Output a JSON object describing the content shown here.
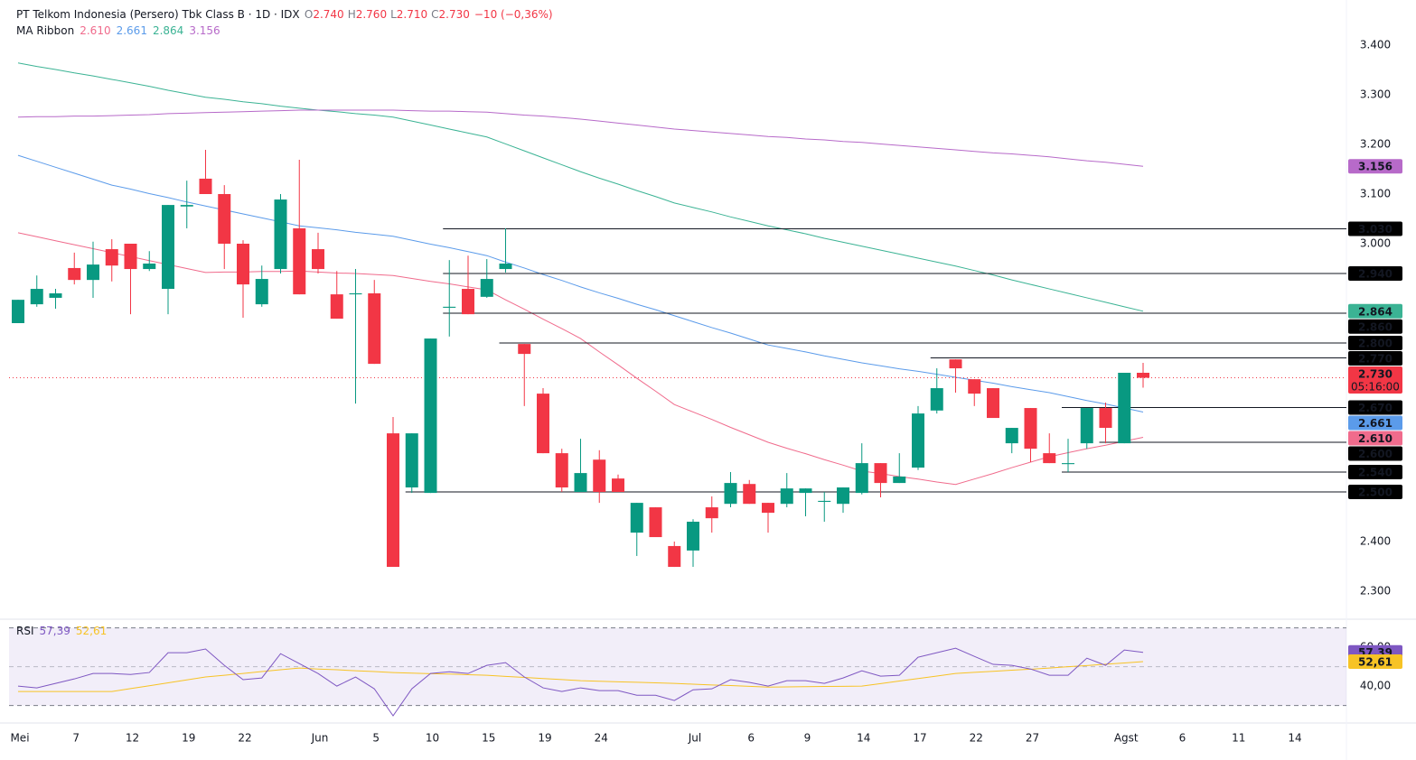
{
  "chart_data": [
    {
      "type": "candlestick",
      "title": "PT Telkom Indonesia (Persero) Tbk Class B · 1D · IDX",
      "ohlc": [
        {
          "key": "O",
          "label": "2.740"
        },
        {
          "key": "H",
          "label": "2.760"
        },
        {
          "key": "L",
          "label": "2.710"
        },
        {
          "key": "C",
          "label": "2.730"
        }
      ],
      "change": "−10 (−0,36%)",
      "indicator": "MA Ribbon",
      "up_color": "#089981",
      "down_color": "#f23645",
      "categories": [
        "Mei",
        null,
        null,
        "7",
        null,
        null,
        "12",
        null,
        null,
        "19",
        null,
        null,
        "22",
        null,
        null,
        null,
        "Jun",
        null,
        null,
        "5",
        null,
        null,
        "10",
        null,
        null,
        "15",
        null,
        null,
        "19",
        null,
        null,
        "24",
        null,
        null,
        null,
        null,
        "Jul",
        null,
        null,
        "6",
        null,
        null,
        "9",
        null,
        null,
        "14",
        null,
        null,
        "17",
        null,
        null,
        "22",
        null,
        null,
        "27",
        null,
        null,
        null,
        null,
        "Agst",
        null,
        null,
        "6",
        null,
        null,
        "11",
        null,
        null,
        "14"
      ],
      "open": [
        2.84,
        2.878,
        2.891,
        2.951,
        2.927,
        2.989,
        3.0,
        2.949,
        2.909,
        3.075,
        3.131,
        3.1,
        3.0,
        2.878,
        2.949,
        3.031,
        2.989,
        2.898,
        2.898,
        2.9,
        2.618,
        2.509,
        2.498,
        2.871,
        2.909,
        2.893,
        2.949,
        2.798,
        2.698,
        2.578,
        2.5,
        2.565,
        2.527,
        2.418,
        2.469,
        2.391,
        2.382,
        2.469,
        2.476,
        2.516,
        2.478,
        2.476,
        2.498,
        2.48,
        2.476,
        2.498,
        2.558,
        2.518,
        2.549,
        2.664,
        2.767,
        2.727,
        2.709,
        2.598,
        2.669,
        2.578,
        2.556,
        2.598,
        2.669,
        2.598,
        2.74,
        null,
        null,
        null,
        null,
        null,
        null,
        null,
        null
      ],
      "high": [
        2.887,
        2.936,
        2.909,
        2.982,
        3.004,
        3.009,
        3.0,
        2.985,
        3.078,
        3.127,
        3.189,
        3.118,
        3.007,
        2.956,
        3.1,
        3.169,
        3.022,
        2.945,
        2.949,
        2.927,
        2.651,
        2.618,
        2.809,
        2.967,
        2.976,
        2.969,
        3.031,
        2.798,
        2.709,
        2.587,
        2.607,
        2.584,
        2.535,
        2.478,
        2.469,
        2.4,
        2.445,
        2.491,
        2.54,
        2.524,
        2.478,
        2.538,
        2.507,
        2.5,
        2.509,
        2.598,
        2.558,
        2.578,
        2.673,
        2.749,
        2.767,
        2.727,
        2.709,
        2.629,
        2.669,
        2.618,
        2.607,
        2.669,
        2.68,
        2.74,
        2.76,
        null,
        null,
        null,
        null,
        null,
        null,
        null,
        null
      ],
      "low": [
        2.84,
        2.873,
        2.869,
        2.918,
        2.891,
        2.924,
        2.858,
        2.945,
        2.858,
        3.031,
        3.1,
        2.949,
        2.851,
        2.873,
        2.94,
        2.898,
        2.94,
        2.849,
        2.678,
        2.758,
        2.349,
        2.498,
        2.498,
        2.813,
        2.858,
        2.891,
        2.942,
        2.673,
        2.578,
        2.5,
        2.5,
        2.478,
        2.5,
        2.371,
        2.409,
        2.349,
        2.349,
        2.418,
        2.469,
        2.476,
        2.418,
        2.469,
        2.451,
        2.44,
        2.458,
        2.495,
        2.489,
        2.518,
        2.544,
        2.658,
        2.7,
        2.673,
        2.649,
        2.578,
        2.56,
        2.558,
        2.54,
        2.587,
        2.598,
        2.598,
        2.71,
        null,
        null,
        null,
        null,
        null,
        null,
        null,
        null
      ],
      "close": [
        2.887,
        2.909,
        2.9,
        2.927,
        2.958,
        2.956,
        2.949,
        2.96,
        3.078,
        3.078,
        3.1,
        3.0,
        2.918,
        2.929,
        3.089,
        2.898,
        2.949,
        2.849,
        2.9,
        2.758,
        2.349,
        2.618,
        2.809,
        2.873,
        2.858,
        2.929,
        2.96,
        2.778,
        2.578,
        2.509,
        2.538,
        2.5,
        2.5,
        2.478,
        2.409,
        2.349,
        2.44,
        2.447,
        2.518,
        2.476,
        2.458,
        2.507,
        2.507,
        2.482,
        2.509,
        2.558,
        2.518,
        2.531,
        2.658,
        2.709,
        2.749,
        2.698,
        2.649,
        2.629,
        2.587,
        2.558,
        2.558,
        2.669,
        2.629,
        2.74,
        2.73,
        null,
        null,
        null,
        null,
        null,
        null,
        null,
        null
      ],
      "series": [
        {
          "color": "#f06b8c",
          "legend_value": "2.610",
          "values": [
            3.022,
            3.014,
            3.006,
            2.998,
            2.99,
            2.982,
            2.974,
            2.966,
            2.958,
            2.95,
            2.942,
            2.943,
            2.943,
            2.944,
            2.944,
            2.945,
            2.943,
            2.941,
            2.94,
            2.938,
            2.936,
            2.93,
            2.924,
            2.919,
            2.913,
            2.907,
            2.887,
            2.868,
            2.848,
            2.829,
            2.809,
            2.782,
            2.756,
            2.729,
            2.703,
            2.676,
            2.661,
            2.646,
            2.63,
            2.615,
            2.6,
            2.588,
            2.577,
            2.565,
            2.554,
            2.542,
            2.537,
            2.531,
            2.526,
            2.52,
            2.515,
            2.526,
            2.537,
            2.549,
            2.56,
            2.571,
            2.579,
            2.587,
            2.594,
            2.602,
            2.61,
            null,
            null,
            null,
            null,
            null,
            null,
            null,
            null
          ]
        },
        {
          "color": "#5b9bea",
          "legend_value": "2.661",
          "values": [
            3.178,
            3.166,
            3.154,
            3.142,
            3.13,
            3.118,
            3.11,
            3.101,
            3.093,
            3.084,
            3.076,
            3.068,
            3.06,
            3.052,
            3.044,
            3.036,
            3.032,
            3.028,
            3.023,
            3.019,
            3.015,
            3.007,
            2.999,
            2.992,
            2.984,
            2.976,
            2.963,
            2.951,
            2.938,
            2.926,
            2.913,
            2.901,
            2.89,
            2.878,
            2.867,
            2.855,
            2.843,
            2.831,
            2.82,
            2.808,
            2.796,
            2.789,
            2.782,
            2.774,
            2.767,
            2.76,
            2.754,
            2.748,
            2.743,
            2.737,
            2.731,
            2.725,
            2.719,
            2.712,
            2.706,
            2.7,
            2.692,
            2.684,
            2.677,
            2.669,
            2.661,
            null,
            null,
            null,
            null,
            null,
            null,
            null,
            null
          ]
        },
        {
          "color": "#3bb394",
          "legend_value": "2.864",
          "values": [
            3.364,
            3.357,
            3.351,
            3.344,
            3.338,
            3.331,
            3.324,
            3.317,
            3.309,
            3.302,
            3.295,
            3.291,
            3.286,
            3.282,
            3.277,
            3.273,
            3.269,
            3.266,
            3.262,
            3.259,
            3.255,
            3.247,
            3.239,
            3.231,
            3.223,
            3.215,
            3.201,
            3.187,
            3.173,
            3.159,
            3.145,
            3.132,
            3.12,
            3.107,
            3.095,
            3.082,
            3.073,
            3.064,
            3.054,
            3.045,
            3.036,
            3.028,
            3.02,
            3.011,
            3.003,
            2.995,
            2.987,
            2.979,
            2.971,
            2.963,
            2.955,
            2.946,
            2.937,
            2.927,
            2.918,
            2.909,
            2.9,
            2.891,
            2.882,
            2.873,
            2.864,
            null,
            null,
            null,
            null,
            null,
            null,
            null,
            null
          ]
        },
        {
          "color": "#b76ac9",
          "legend_value": "3.156",
          "values": [
            3.255,
            3.256,
            3.256,
            3.257,
            3.257,
            3.258,
            3.259,
            3.26,
            3.262,
            3.263,
            3.264,
            3.265,
            3.266,
            3.267,
            3.268,
            3.269,
            3.269,
            3.269,
            3.269,
            3.269,
            3.269,
            3.268,
            3.267,
            3.267,
            3.266,
            3.265,
            3.262,
            3.259,
            3.257,
            3.254,
            3.251,
            3.247,
            3.243,
            3.239,
            3.235,
            3.231,
            3.228,
            3.225,
            3.222,
            3.219,
            3.216,
            3.214,
            3.211,
            3.209,
            3.206,
            3.204,
            3.201,
            3.198,
            3.195,
            3.192,
            3.189,
            3.186,
            3.183,
            3.181,
            3.178,
            3.175,
            3.171,
            3.167,
            3.164,
            3.16,
            3.156,
            null,
            null,
            null,
            null,
            null,
            null,
            null,
            null
          ]
        }
      ],
      "levels": [
        {
          "value": 3.03,
          "label": "3.030",
          "start": 23
        },
        {
          "value": 2.94,
          "label": "2.940",
          "start": 23
        },
        {
          "value": 2.86,
          "label": "2.860",
          "start": 23
        },
        {
          "value": 2.8,
          "label": "2.800",
          "start": 26
        },
        {
          "value": 2.77,
          "label": "2.770",
          "start": 49
        },
        {
          "value": 2.67,
          "label": "2.670",
          "start": 56
        },
        {
          "value": 2.6,
          "label": "2.600",
          "start": 58
        },
        {
          "value": 2.54,
          "label": "2.540",
          "start": 56
        },
        {
          "value": 2.5,
          "label": "2.500",
          "start": 21
        }
      ],
      "last_price": {
        "value": 2.73,
        "label": "2.730",
        "countdown": "05:16:00"
      },
      "ylim": [
        2.245,
        3.49
      ],
      "yticks": [
        {
          "value": 3.4,
          "label": "3.400"
        },
        {
          "value": 3.3,
          "label": "3.300"
        },
        {
          "value": 3.2,
          "label": "3.200"
        },
        {
          "value": 3.1,
          "label": "3.100"
        },
        {
          "value": 3.0,
          "label": "3.000"
        },
        {
          "value": 2.4,
          "label": "2.400"
        },
        {
          "value": 2.3,
          "label": "2.300"
        }
      ]
    },
    {
      "type": "line",
      "title": "RSI",
      "band_color": "#7e57c2",
      "bands": [
        70,
        30
      ],
      "midline": 50,
      "series": [
        {
          "color": "#7e57c2",
          "label_color": "#7e57c2",
          "legend_value": "57,39",
          "values": [
            40.0,
            39.1,
            41.4,
            43.7,
            46.5,
            46.5,
            46.0,
            47.0,
            57.2,
            57.2,
            59.1,
            50.7,
            43.3,
            44.2,
            56.7,
            51.6,
            46.5,
            40.0,
            44.7,
            38.6,
            24.7,
            38.6,
            46.5,
            47.4,
            46.5,
            50.7,
            52.1,
            44.7,
            39.1,
            37.2,
            39.1,
            37.7,
            37.7,
            35.3,
            35.3,
            32.6,
            38.1,
            38.6,
            43.3,
            41.9,
            40.0,
            42.8,
            42.8,
            41.4,
            44.2,
            47.9,
            45.1,
            45.6,
            54.9,
            57.2,
            59.5,
            55.3,
            51.2,
            50.7,
            48.8,
            45.6,
            45.6,
            54.4,
            50.7,
            58.6,
            57.39,
            null,
            null,
            null,
            null,
            null,
            null,
            null,
            null
          ]
        },
        {
          "color": "#f7c325",
          "label_color": "#131722",
          "legend_value": "52,61",
          "values": [
            37.2,
            37.2,
            37.2,
            37.2,
            37.2,
            37.2,
            38.7,
            40.2,
            41.7,
            43.2,
            44.7,
            45.6,
            46.5,
            47.5,
            48.4,
            49.3,
            48.8,
            48.4,
            47.9,
            47.5,
            47.0,
            46.7,
            46.4,
            46.2,
            45.9,
            45.6,
            45.0,
            44.5,
            43.9,
            43.4,
            42.8,
            42.5,
            42.2,
            42.0,
            41.7,
            41.4,
            41.0,
            40.6,
            40.3,
            39.9,
            39.5,
            39.6,
            39.7,
            39.8,
            39.9,
            40.0,
            41.3,
            42.6,
            43.9,
            45.2,
            46.5,
            47.1,
            47.6,
            48.2,
            48.7,
            49.3,
            50.0,
            50.6,
            51.3,
            51.9,
            52.61,
            null,
            null,
            null,
            null,
            null,
            null,
            null,
            null
          ]
        }
      ],
      "ylim": [
        21,
        74
      ],
      "yticks": [
        {
          "value": 60,
          "label": "60,00"
        },
        {
          "value": 40,
          "label": "40,00"
        }
      ]
    }
  ]
}
